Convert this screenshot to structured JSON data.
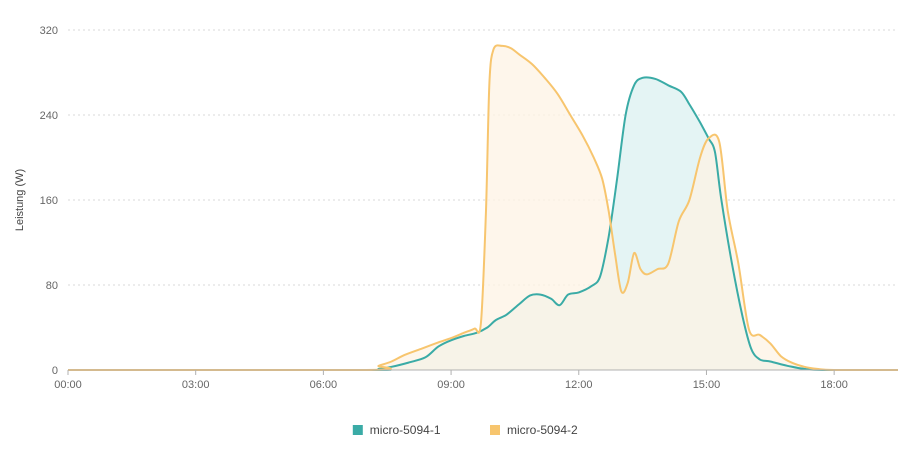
{
  "chart_data": {
    "type": "area",
    "ylabel": "Leistung (W)",
    "ylim": [
      0,
      320
    ],
    "yticks": [
      "0",
      "80",
      "160",
      "240",
      "320"
    ],
    "xlim": [
      0,
      19.5
    ],
    "xticks": [
      "00:00",
      "03:00",
      "06:00",
      "09:00",
      "12:00",
      "15:00",
      "18:00"
    ],
    "grid": "horizontal dashed",
    "legend_position": "bottom-center",
    "series": [
      {
        "name": "micro-5094-1",
        "color": "#3aaba6",
        "fill": "#e4f4f4",
        "points": [
          [
            0,
            0
          ],
          [
            7.0,
            0
          ],
          [
            7.3,
            1
          ],
          [
            7.6,
            3
          ],
          [
            8.0,
            7
          ],
          [
            8.4,
            12
          ],
          [
            8.7,
            22
          ],
          [
            9.0,
            28
          ],
          [
            9.3,
            32
          ],
          [
            9.6,
            35
          ],
          [
            9.85,
            40
          ],
          [
            10.05,
            47
          ],
          [
            10.3,
            52
          ],
          [
            10.6,
            62
          ],
          [
            10.85,
            70
          ],
          [
            11.1,
            71
          ],
          [
            11.35,
            67
          ],
          [
            11.55,
            61
          ],
          [
            11.75,
            71
          ],
          [
            12.0,
            73
          ],
          [
            12.3,
            79
          ],
          [
            12.5,
            88
          ],
          [
            12.7,
            125
          ],
          [
            12.9,
            180
          ],
          [
            13.1,
            240
          ],
          [
            13.3,
            268
          ],
          [
            13.5,
            275
          ],
          [
            13.8,
            274
          ],
          [
            14.1,
            268
          ],
          [
            14.4,
            262
          ],
          [
            14.6,
            250
          ],
          [
            14.85,
            233
          ],
          [
            15.05,
            218
          ],
          [
            15.2,
            205
          ],
          [
            15.35,
            160
          ],
          [
            15.6,
            100
          ],
          [
            15.85,
            50
          ],
          [
            16.05,
            20
          ],
          [
            16.25,
            10
          ],
          [
            16.5,
            8
          ],
          [
            16.9,
            4
          ],
          [
            17.3,
            1
          ],
          [
            17.8,
            0
          ],
          [
            19.5,
            0
          ]
        ]
      },
      {
        "name": "micro-5094-2",
        "color": "#f7c56e",
        "fill": "#fdf3e4",
        "points": [
          [
            0,
            0
          ],
          [
            7.0,
            0
          ],
          [
            7.3,
            4
          ],
          [
            7.6,
            8
          ],
          [
            7.9,
            14
          ],
          [
            8.3,
            20
          ],
          [
            8.7,
            26
          ],
          [
            9.0,
            30
          ],
          [
            9.3,
            35
          ],
          [
            9.55,
            39
          ],
          [
            9.7,
            44
          ],
          [
            9.82,
            150
          ],
          [
            9.9,
            270
          ],
          [
            10.0,
            302
          ],
          [
            10.2,
            305
          ],
          [
            10.4,
            303
          ],
          [
            10.6,
            297
          ],
          [
            10.9,
            288
          ],
          [
            11.2,
            275
          ],
          [
            11.5,
            260
          ],
          [
            11.8,
            240
          ],
          [
            12.1,
            220
          ],
          [
            12.35,
            200
          ],
          [
            12.55,
            180
          ],
          [
            12.7,
            150
          ],
          [
            12.85,
            110
          ],
          [
            13.0,
            74
          ],
          [
            13.15,
            82
          ],
          [
            13.3,
            110
          ],
          [
            13.45,
            95
          ],
          [
            13.6,
            90
          ],
          [
            13.85,
            95
          ],
          [
            14.1,
            100
          ],
          [
            14.35,
            140
          ],
          [
            14.6,
            160
          ],
          [
            14.85,
            200
          ],
          [
            15.05,
            218
          ],
          [
            15.3,
            215
          ],
          [
            15.5,
            150
          ],
          [
            15.75,
            100
          ],
          [
            16.0,
            38
          ],
          [
            16.25,
            33
          ],
          [
            16.5,
            25
          ],
          [
            16.75,
            13
          ],
          [
            17.0,
            7
          ],
          [
            17.3,
            3
          ],
          [
            17.6,
            1
          ],
          [
            18.0,
            0
          ],
          [
            19.5,
            0
          ]
        ]
      }
    ]
  }
}
